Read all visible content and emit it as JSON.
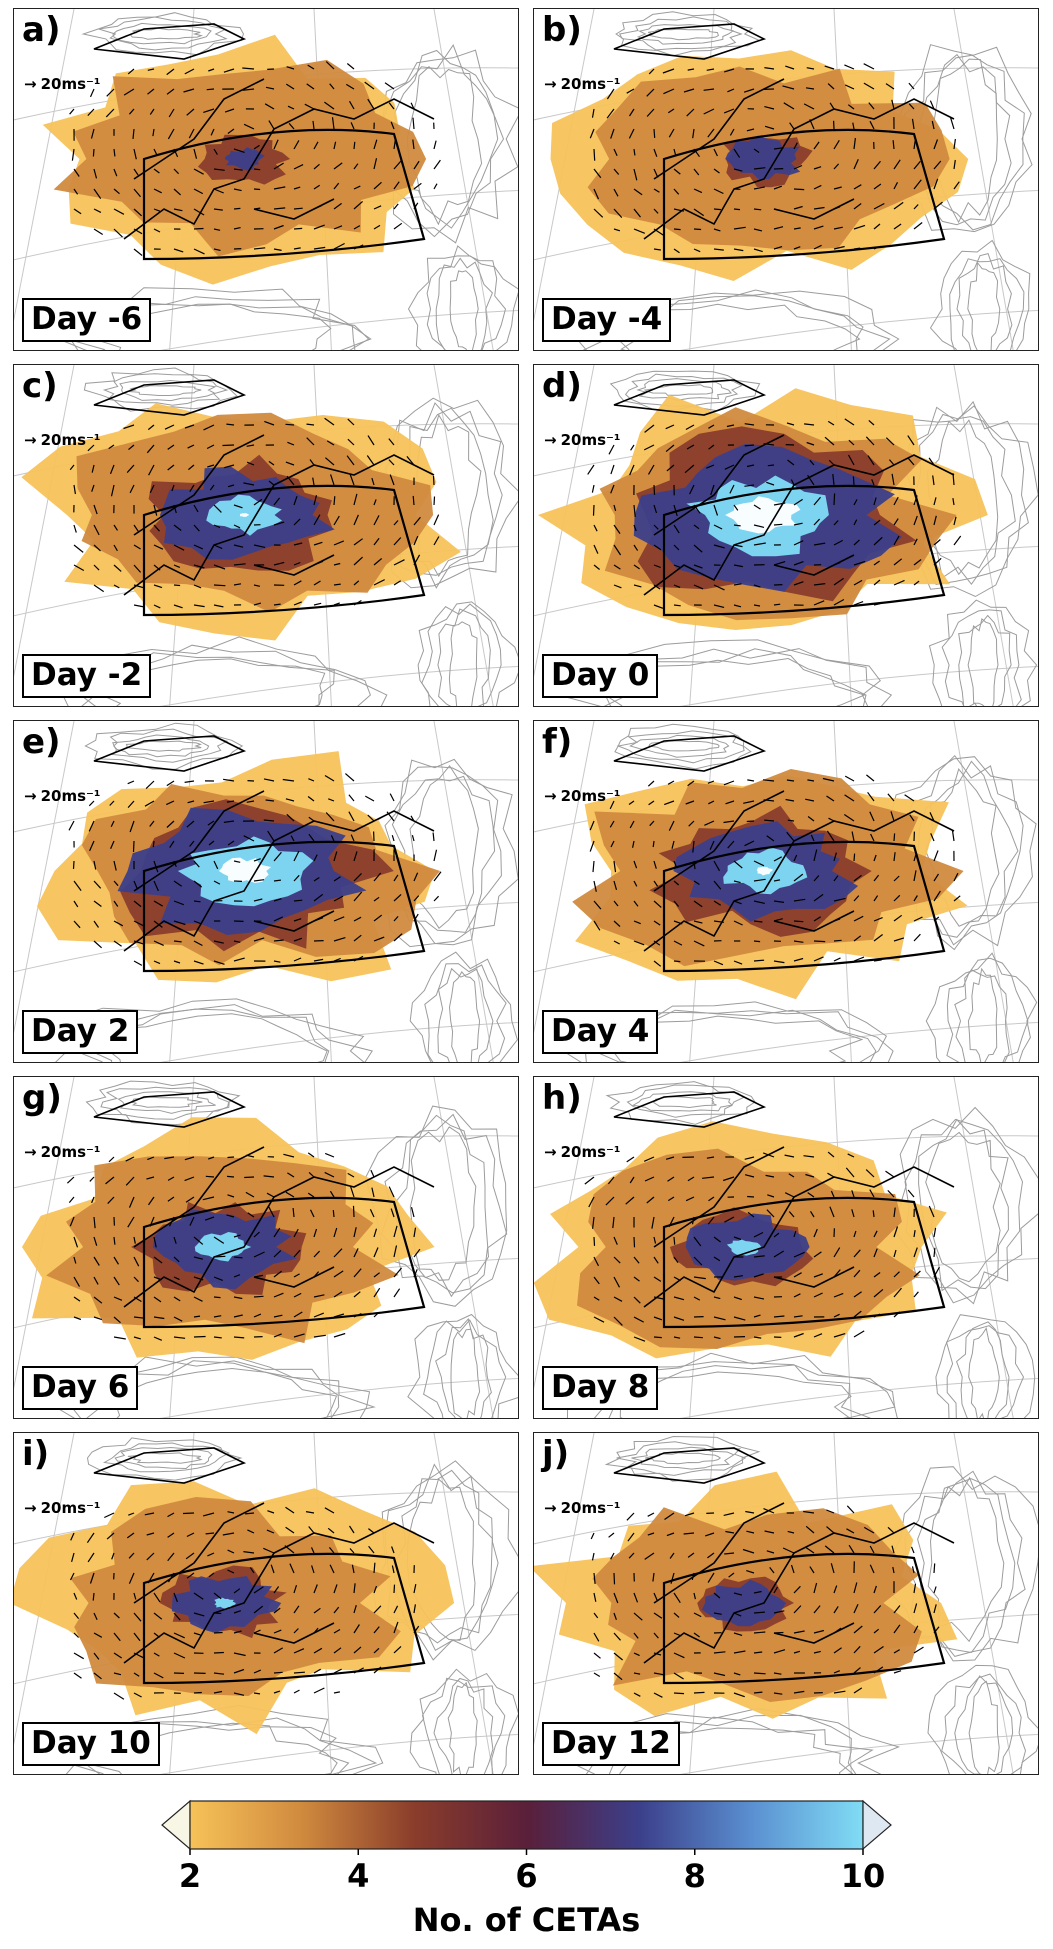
{
  "figure": {
    "panels": [
      {
        "letter": "a)",
        "day": "Day -6",
        "wind_ref": "20ms⁻¹",
        "intensity": 0.15
      },
      {
        "letter": "b)",
        "day": "Day -4",
        "wind_ref": "20ms⁻¹",
        "intensity": 0.3
      },
      {
        "letter": "c)",
        "day": "Day -2",
        "wind_ref": "20ms⁻¹",
        "intensity": 0.65
      },
      {
        "letter": "d)",
        "day": "Day 0",
        "wind_ref": "20ms⁻¹",
        "intensity": 1.0
      },
      {
        "letter": "e)",
        "day": "Day 2",
        "wind_ref": "20ms⁻¹",
        "intensity": 0.9
      },
      {
        "letter": "f)",
        "day": "Day 4",
        "wind_ref": "20ms⁻¹",
        "intensity": 0.7
      },
      {
        "letter": "g)",
        "day": "Day 6",
        "wind_ref": "20ms⁻¹",
        "intensity": 0.55
      },
      {
        "letter": "h)",
        "day": "Day 8",
        "wind_ref": "20ms⁻¹",
        "intensity": 0.45
      },
      {
        "letter": "i)",
        "day": "Day 10",
        "wind_ref": "20ms⁻¹",
        "intensity": 0.4
      },
      {
        "letter": "j)",
        "day": "Day 12",
        "wind_ref": "20ms⁻¹",
        "intensity": 0.3
      }
    ]
  },
  "colorbar": {
    "title": "No. of CETAs",
    "ticks": [
      "2",
      "4",
      "6",
      "8",
      "10"
    ],
    "min": 2,
    "max": 10,
    "colors": [
      "#f7c259",
      "#d08a3e",
      "#8a3d2b",
      "#5a1f3a",
      "#3c3f8a",
      "#5a8fd0",
      "#80dcf5"
    ],
    "extend_low_color": "#f8f6e4",
    "extend_high_color": "#dde8f2"
  }
}
